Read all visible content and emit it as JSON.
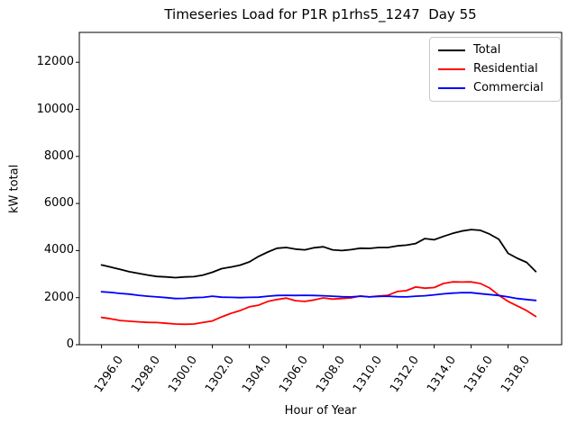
{
  "chart_data": {
    "type": "line",
    "title": "Timeseries Load for P1R p1rhs5_1247  Day 55",
    "xlabel": "Hour of Year",
    "ylabel": "kW total",
    "xlim": [
      1294.8,
      1320.9
    ],
    "ylim": [
      0,
      13270
    ],
    "grid": false,
    "legend_position": "upper right",
    "xticks": [
      1296,
      1298,
      1300,
      1302,
      1304,
      1306,
      1308,
      1310,
      1312,
      1314,
      1316,
      1318
    ],
    "xtick_labels": [
      "1296.0",
      "1298.0",
      "1300.0",
      "1302.0",
      "1304.0",
      "1306.0",
      "1308.0",
      "1310.0",
      "1312.0",
      "1314.0",
      "1316.0",
      "1318.0"
    ],
    "yticks": [
      0,
      2000,
      4000,
      6000,
      8000,
      10000,
      12000
    ],
    "ytick_labels": [
      "0",
      "2000",
      "4000",
      "6000",
      "8000",
      "10000",
      "12000"
    ],
    "x": [
      1296.0,
      1296.5,
      1297.0,
      1297.5,
      1298.0,
      1298.5,
      1299.0,
      1299.5,
      1300.0,
      1300.5,
      1301.0,
      1301.5,
      1302.0,
      1302.5,
      1303.0,
      1303.5,
      1304.0,
      1304.5,
      1305.0,
      1305.5,
      1306.0,
      1306.5,
      1307.0,
      1307.5,
      1308.0,
      1308.5,
      1309.0,
      1309.5,
      1310.0,
      1310.5,
      1311.0,
      1311.5,
      1312.0,
      1312.5,
      1313.0,
      1313.5,
      1314.0,
      1314.5,
      1315.0,
      1315.5,
      1316.0,
      1316.5,
      1317.0,
      1317.5,
      1318.0,
      1318.5,
      1319.0,
      1319.5
    ],
    "series": [
      {
        "name": "Total",
        "color": "#000000",
        "values": [
          3390,
          3300,
          3200,
          3100,
          3030,
          2960,
          2900,
          2880,
          2850,
          2880,
          2890,
          2960,
          3080,
          3230,
          3300,
          3380,
          3520,
          3750,
          3940,
          4100,
          4130,
          4060,
          4030,
          4120,
          4160,
          4030,
          4000,
          4040,
          4100,
          4090,
          4130,
          4130,
          4200,
          4230,
          4300,
          4510,
          4460,
          4600,
          4730,
          4830,
          4890,
          4860,
          4700,
          4480,
          3880,
          3670,
          3500,
          3110
        ]
      },
      {
        "name": "Residential",
        "color": "#ff0000",
        "values": [
          1160,
          1100,
          1030,
          1000,
          970,
          950,
          940,
          910,
          880,
          870,
          880,
          950,
          1010,
          1180,
          1330,
          1450,
          1610,
          1680,
          1840,
          1920,
          1980,
          1870,
          1840,
          1900,
          1990,
          1940,
          1960,
          1990,
          2070,
          2030,
          2070,
          2100,
          2260,
          2300,
          2450,
          2400,
          2430,
          2600,
          2670,
          2660,
          2670,
          2600,
          2410,
          2100,
          1840,
          1650,
          1450,
          1200
        ]
      },
      {
        "name": "Commercial",
        "color": "#0000ff",
        "values": [
          2250,
          2220,
          2180,
          2150,
          2100,
          2060,
          2030,
          2000,
          1960,
          1970,
          2000,
          2010,
          2060,
          2020,
          2010,
          2000,
          2010,
          2020,
          2060,
          2090,
          2100,
          2090,
          2100,
          2090,
          2080,
          2060,
          2040,
          2030,
          2060,
          2030,
          2050,
          2060,
          2040,
          2030,
          2060,
          2080,
          2120,
          2160,
          2190,
          2210,
          2210,
          2170,
          2130,
          2090,
          2030,
          1960,
          1920,
          1880
        ]
      }
    ]
  }
}
